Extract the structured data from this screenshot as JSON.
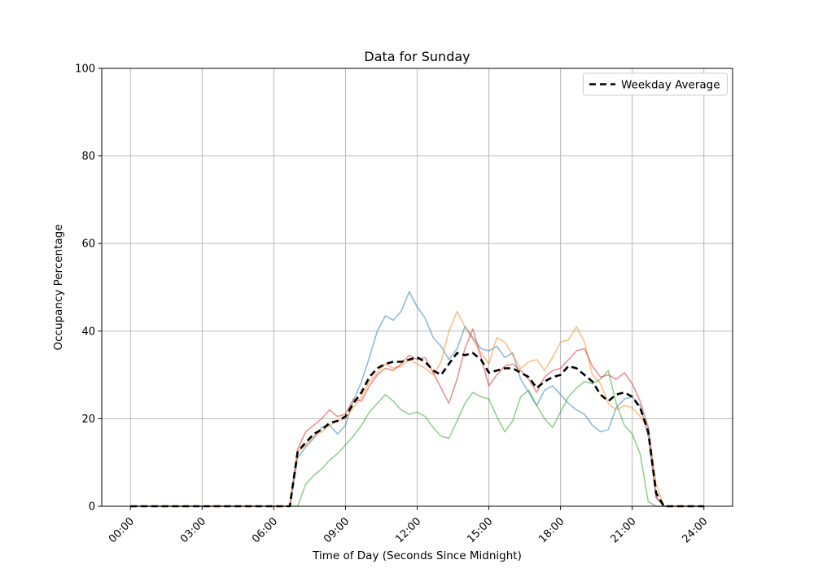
{
  "figure": {
    "title": "Data for Sunday",
    "xlabel": "Time of Day (Seconds Since Midnight)",
    "ylabel": "Occupancy Percentage"
  },
  "chart_data": {
    "type": "line",
    "title": "Data for Sunday",
    "xlabel": "Time of Day (Seconds Since Midnight)",
    "ylabel": "Occupancy Percentage",
    "grid": true,
    "grid_color": "#b0b0b0",
    "xlim": [
      -1.2,
      25.2
    ],
    "ylim": [
      0,
      100
    ],
    "x_tick_hours": [
      0,
      3,
      6,
      9,
      12,
      15,
      18,
      21,
      24
    ],
    "x_tick_labels": [
      "00:00",
      "03:00",
      "06:00",
      "09:00",
      "12:00",
      "15:00",
      "18:00",
      "21:00",
      "24:00"
    ],
    "y_ticks": [
      0,
      20,
      40,
      60,
      80,
      100
    ],
    "legend": {
      "position": "upper-right",
      "entries": [
        "Weekday Average"
      ]
    },
    "x_hours": [
      0,
      0.33,
      0.67,
      1,
      1.33,
      1.67,
      2,
      2.33,
      2.67,
      3,
      3.33,
      3.67,
      4,
      4.33,
      4.67,
      5,
      5.33,
      5.67,
      6,
      6.33,
      6.67,
      7,
      7.33,
      7.67,
      8,
      8.33,
      8.67,
      9,
      9.33,
      9.67,
      10,
      10.33,
      10.67,
      11,
      11.33,
      11.67,
      12,
      12.33,
      12.67,
      13,
      13.33,
      13.67,
      14,
      14.33,
      14.67,
      15,
      15.33,
      15.67,
      16,
      16.33,
      16.67,
      17,
      17.33,
      17.67,
      18,
      18.33,
      18.67,
      19,
      19.33,
      19.67,
      20,
      20.33,
      20.67,
      21,
      21.33,
      21.67,
      22,
      22.33,
      22.67,
      23,
      23.33,
      23.67,
      24
    ],
    "series": [
      {
        "name": "sunday-trace-1",
        "color": "#1f77b4",
        "alpha": 0.5,
        "width": 1.6,
        "dash": "solid",
        "values": [
          0,
          0,
          0,
          0,
          0,
          0,
          0,
          0,
          0,
          0,
          0,
          0,
          0,
          0,
          0,
          0,
          0,
          0,
          0,
          0,
          0,
          11,
          13.5,
          15.5,
          18,
          18.5,
          16.5,
          18.5,
          24,
          28.5,
          34,
          40,
          43.5,
          42.5,
          44.5,
          49,
          45.5,
          43,
          38.5,
          36.5,
          33.5,
          36,
          41,
          38.5,
          36,
          35.5,
          36.5,
          34,
          35,
          29,
          26,
          23,
          26.5,
          27.5,
          25.5,
          23.5,
          22,
          21,
          18.5,
          17,
          17.5,
          22.5,
          24.5,
          25,
          23,
          16,
          2,
          0,
          0,
          0,
          0,
          0,
          0
        ]
      },
      {
        "name": "sunday-trace-2",
        "color": "#ff7f0e",
        "alpha": 0.5,
        "width": 1.6,
        "dash": "solid",
        "values": [
          0,
          0,
          0,
          0,
          0,
          0,
          0,
          0,
          0,
          0,
          0,
          0,
          0,
          0,
          0,
          0,
          0,
          0,
          0,
          0,
          0,
          12.5,
          14,
          16,
          17,
          18.5,
          19.5,
          20,
          22.5,
          25,
          28.5,
          30.5,
          32.5,
          31.5,
          32,
          33.5,
          32.5,
          31.5,
          30,
          33,
          40,
          44.5,
          41,
          38,
          35,
          32.5,
          38.5,
          37.5,
          34.5,
          31.5,
          33,
          33.5,
          31,
          34,
          37.5,
          38,
          41,
          37.5,
          30,
          28,
          23.5,
          22,
          23,
          22.5,
          20.5,
          18,
          5,
          0,
          0,
          0,
          0,
          0,
          0
        ]
      },
      {
        "name": "sunday-trace-3",
        "color": "#2ca02c",
        "alpha": 0.5,
        "width": 1.6,
        "dash": "solid",
        "values": [
          0,
          0,
          0,
          0,
          0,
          0,
          0,
          0,
          0,
          0,
          0,
          0,
          0,
          0,
          0,
          0,
          0,
          0,
          0,
          0,
          0,
          0,
          5,
          7,
          8.5,
          10.5,
          12,
          14,
          16,
          18.5,
          21.5,
          23.5,
          25.5,
          24,
          22,
          21,
          21.5,
          20.5,
          18,
          16,
          15.5,
          19.5,
          23.5,
          26,
          25,
          24.5,
          20.5,
          17,
          19.5,
          25,
          26.5,
          23,
          20,
          18,
          21.5,
          25,
          27,
          28.5,
          28,
          29,
          31,
          23.5,
          18.5,
          16.5,
          12,
          1,
          0,
          0,
          0,
          0,
          0,
          0,
          0
        ]
      },
      {
        "name": "sunday-trace-4",
        "color": "#d62728",
        "alpha": 0.5,
        "width": 1.6,
        "dash": "solid",
        "values": [
          0,
          0,
          0,
          0,
          0,
          0,
          0,
          0,
          0,
          0,
          0,
          0,
          0,
          0,
          0,
          0,
          0,
          0,
          0,
          0,
          0,
          13,
          17,
          18.5,
          20,
          22,
          20.5,
          21,
          24.5,
          24,
          27.5,
          30,
          31.5,
          31,
          32.5,
          34.5,
          33.5,
          34,
          30.5,
          27,
          23.5,
          29,
          36,
          40.5,
          34,
          27.5,
          30,
          32,
          32.5,
          31,
          29,
          26,
          29.5,
          31,
          31.5,
          33.5,
          35.5,
          36,
          32,
          29.5,
          30,
          29,
          30.5,
          28,
          24,
          18,
          2,
          0,
          0,
          0,
          0,
          0,
          0
        ]
      },
      {
        "name": "weekday-average",
        "legend_label": "Weekday Average",
        "color": "#000000",
        "alpha": 1,
        "width": 2.6,
        "dash": "dashed",
        "values": [
          0,
          0,
          0,
          0,
          0,
          0,
          0,
          0,
          0,
          0,
          0,
          0,
          0,
          0,
          0,
          0,
          0,
          0,
          0,
          0,
          0,
          12.5,
          14.5,
          16.5,
          17.5,
          19,
          19.5,
          20.5,
          23.5,
          26,
          29.5,
          31.5,
          32.5,
          33,
          33,
          33.5,
          34,
          33,
          31,
          30,
          32.5,
          35,
          34.5,
          35,
          33.5,
          30.5,
          31,
          31.5,
          31.5,
          30.5,
          29.5,
          27,
          28.5,
          29.5,
          30,
          32,
          31.5,
          30,
          28.5,
          25.5,
          24,
          25.5,
          26,
          25,
          22.5,
          17,
          3,
          0,
          0,
          0,
          0,
          0,
          0
        ]
      }
    ]
  }
}
